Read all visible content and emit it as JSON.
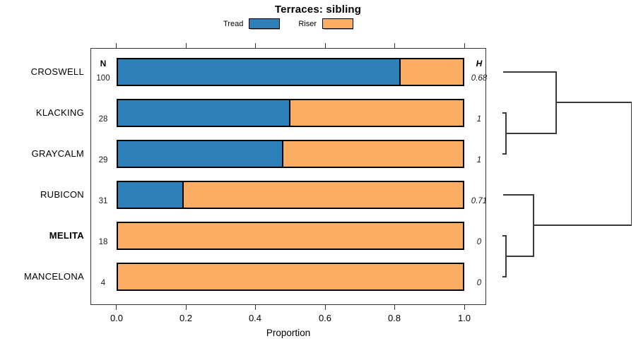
{
  "title": "Terraces: sibling",
  "legend": [
    {
      "label": "Tread",
      "color": "#2e80b9"
    },
    {
      "label": "Riser",
      "color": "#fbad63"
    }
  ],
  "table_headers": {
    "n": "N",
    "h": "H"
  },
  "x_axis": {
    "label": "Proportion",
    "ticks": [
      "0.0",
      "0.2",
      "0.4",
      "0.6",
      "0.8",
      "1.0"
    ]
  },
  "rows": [
    {
      "label": "CROSWELL",
      "n": "100",
      "h": "0.68"
    },
    {
      "label": "KLACKING",
      "n": "28",
      "h": "1"
    },
    {
      "label": "GRAYCALM",
      "n": "29",
      "h": "1"
    },
    {
      "label": "RUBICON",
      "n": "31",
      "h": "0.71"
    },
    {
      "label": "MELITA",
      "n": "18",
      "h": "0"
    },
    {
      "label": "MANCELONA",
      "n": "4",
      "h": "0"
    }
  ],
  "chart_data": {
    "type": "bar",
    "orientation": "horizontal",
    "stacked": true,
    "title": "Terraces: sibling",
    "xlabel": "Proportion",
    "xlim": [
      0,
      1
    ],
    "x_ticks": [
      0.0,
      0.2,
      0.4,
      0.6,
      0.8,
      1.0
    ],
    "grid": false,
    "legend_position": "top",
    "categories": [
      "CROSWELL",
      "KLACKING",
      "GRAYCALM",
      "RUBICON",
      "MELITA",
      "MANCELONA"
    ],
    "series": [
      {
        "name": "Tread",
        "color": "#2e80b9",
        "values": [
          0.82,
          0.5,
          0.48,
          0.19,
          0,
          0
        ]
      },
      {
        "name": "Riser",
        "color": "#fbad63",
        "values": [
          0.18,
          0.5,
          0.52,
          0.81,
          1,
          1
        ]
      }
    ],
    "n_column": {
      "header": "N",
      "values": [
        100,
        28,
        29,
        31,
        18,
        4
      ]
    },
    "h_column": {
      "header": "H",
      "values": [
        "0.68",
        "1",
        "1",
        "0.71",
        "0",
        "0"
      ]
    },
    "emphasized_category": "MELITA",
    "dendrogram": {
      "side": "right",
      "structure": "((CROSWELL,(KLACKING,GRAYCALM)),(RUBICON,(MELITA,MANCELONA)))"
    }
  }
}
